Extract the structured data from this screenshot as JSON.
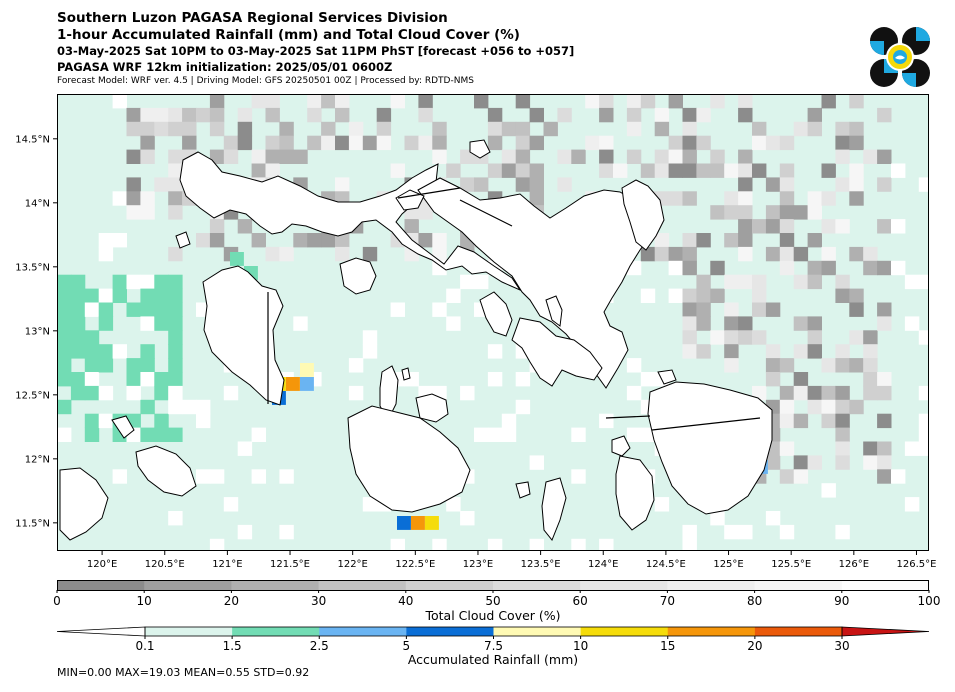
{
  "header": {
    "title1": "Southern Luzon PAGASA Regional Services Division",
    "title2": "1-hour Accumulated Rainfall (mm) and Total Cloud Cover (%)",
    "period": "03-May-2025 Sat 10PM to 03-May-2025 Sat 11PM PhST [forecast +056 to +057]",
    "init": "PAGASA WRF 12km initialization: 2025/05/01 0600Z",
    "meta": "Forecast Model: WRF ver. 4.5 | Driving Model: GFS 20250501 00Z | Processed by: RDTD-NMS"
  },
  "map": {
    "lon_ticks": [
      "120°E",
      "120.5°E",
      "121°E",
      "121.5°E",
      "122°E",
      "122.5°E",
      "123°E",
      "123.5°E",
      "124°E",
      "124.5°E",
      "125°E",
      "125.5°E",
      "126°E",
      "126.5°E"
    ],
    "lat_ticks": [
      "14.5°N",
      "14°N",
      "13.5°N",
      "13°N",
      "12.5°N",
      "12°N",
      "11.5°N"
    ],
    "extent": {
      "lon_min": 119.64,
      "lon_max": 126.6,
      "lat_min": 11.28,
      "lat_max": 14.85
    }
  },
  "cloud_bar": {
    "label": "Total Cloud Cover (%)",
    "ticks": [
      "0",
      "10",
      "20",
      "30",
      "40",
      "50",
      "60",
      "70",
      "80",
      "90",
      "100"
    ],
    "colors": [
      "#8c8c8c",
      "#9f9f9f",
      "#b0b0b0",
      "#c1c1c1",
      "#d0d0d0",
      "#dcdcdc",
      "#e6e6e6",
      "#efefef",
      "#f6f6f6",
      "#fdfdfd"
    ]
  },
  "rain_bar": {
    "label": "Accumulated Rainfall (mm)",
    "ticks": [
      "0.1",
      "1.5",
      "2.5",
      "5",
      "7.5",
      "10",
      "15",
      "20",
      "30"
    ],
    "colors": [
      "#ffffff",
      "#dcf4ec",
      "#72dcb4",
      "#6ab4f2",
      "#0a6ed6",
      "#fffab4",
      "#f5dc0a",
      "#f5960a",
      "#eb5a0a",
      "#c81414"
    ]
  },
  "stats": {
    "text": "MIN=0.00   MAX=19.03   MEAN=0.55   STD=0.92"
  },
  "colors": {
    "land_outline": "#000000",
    "ocean_background": "#dcf4ec",
    "logo_black": "#111111",
    "logo_blue": "#1fa9e1",
    "logo_yellow": "#f5d90a"
  }
}
